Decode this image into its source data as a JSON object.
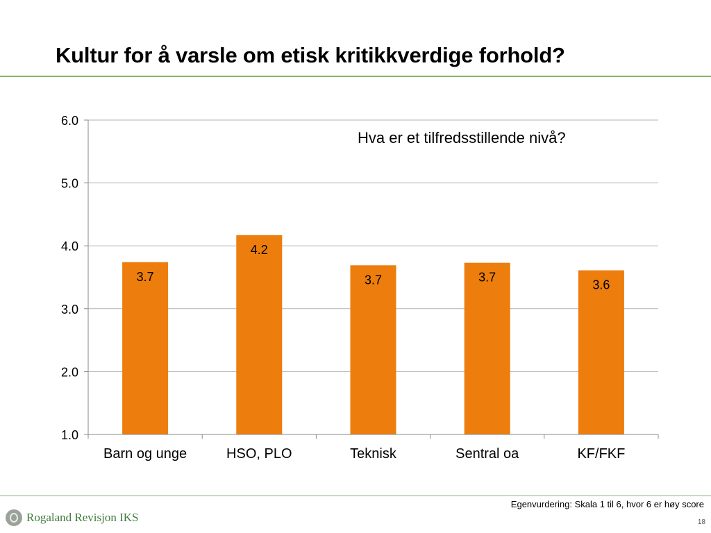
{
  "slide": {
    "title": "Kultur for å varsle om etisk kritikkverdige forhold?",
    "annotation": "Hva er et tilfredsstillende nivå?",
    "footnote": "Egenvurdering: Skala 1 til 6, hvor 6 er høy score",
    "page_number": "18",
    "logo_text": "Rogaland Revisjon IKS"
  },
  "colors": {
    "bar": "#ed7d0c",
    "rule": "#8ab26b",
    "gridline": "#b3b3b3",
    "logo": "#3f7a3b"
  },
  "chart_data": {
    "type": "bar",
    "title": "",
    "xlabel": "",
    "ylabel": "",
    "categories": [
      "Barn og unge",
      "HSO, PLO",
      "Teknisk",
      "Sentral oa",
      "KF/FKF"
    ],
    "values": [
      3.74,
      4.17,
      3.69,
      3.73,
      3.61
    ],
    "data_labels": [
      "3.7",
      "4.2",
      "3.7",
      "3.7",
      "3.6"
    ],
    "ylim": [
      1.0,
      6.0
    ],
    "yticks": [
      "1.0",
      "2.0",
      "3.0",
      "4.0",
      "5.0",
      "6.0"
    ],
    "grid": true,
    "legend": "none"
  }
}
